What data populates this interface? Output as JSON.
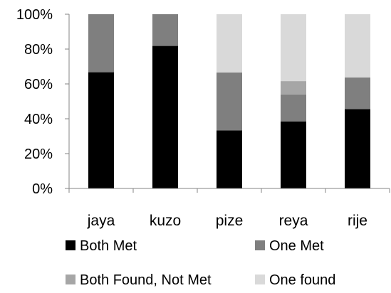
{
  "chart_data": {
    "type": "bar",
    "stacked": true,
    "percent": true,
    "categories": [
      "jaya",
      "kuzo",
      "pize",
      "reya",
      "rije"
    ],
    "series": [
      {
        "name": "Both Met",
        "color": "#000000",
        "values": [
          66.7,
          81.8,
          33.3,
          38.5,
          45.5
        ]
      },
      {
        "name": "One Met",
        "color": "#7f7f7f",
        "values": [
          33.3,
          18.2,
          33.3,
          15.4,
          18.2
        ]
      },
      {
        "name": "Both Found, Not Met",
        "color": "#a6a6a6",
        "values": [
          0,
          0,
          0,
          7.7,
          0
        ]
      },
      {
        "name": "One found",
        "color": "#d9d9d9",
        "values": [
          0,
          0,
          33.4,
          38.4,
          36.3
        ]
      }
    ],
    "y_ticks": [
      "0%",
      "20%",
      "40%",
      "60%",
      "80%",
      "100%"
    ],
    "ylim": [
      0,
      100
    ],
    "grid": false,
    "legend_position": "bottom"
  }
}
